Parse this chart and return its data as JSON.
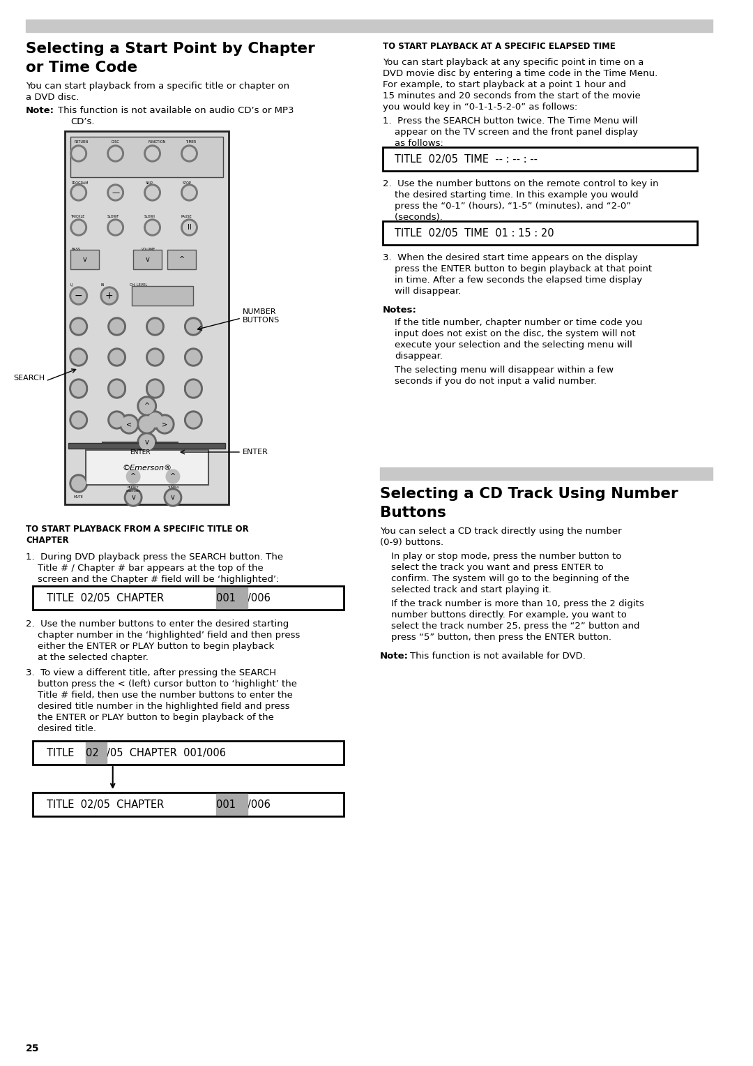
{
  "page_number": "25",
  "background_color": "#ffffff",
  "header_bar_color": "#c8c8c8",
  "section1_title_line1": "Selecting a Start Point by Chapter",
  "section1_title_line2": "or Time Code",
  "section1_body1": "You can start playback from a specific title or chapter on",
  "section1_body2": "a DVD disc.",
  "section1_note_bold": "Note:",
  "section1_note_text": "This function is not available on audio CD’s or MP3",
  "section1_note_text2": "CD’s.",
  "subsection_right_title": "TO START PLAYBACK AT A SPECIFIC ELAPSED TIME",
  "display_box1": "TITLE  02/05  TIME  -- : -- : --",
  "display_box2": "TITLE  02/05  TIME  01 : 15 : 20",
  "notes_label": "Notes:",
  "subsection_left_title1": "TO START PLAYBACK FROM A SPECIFIC TITLE OR",
  "subsection_left_title2": "CHAPTER",
  "display_chapter1_pre": "TITLE  02/05  CHAPTER  ",
  "display_chapter1_hl": "001",
  "display_chapter1_post": "/006",
  "section2_title_line1": "Selecting a CD Track Using Number",
  "section2_title_line2": "Buttons",
  "remote_label_number": "NUMBER\nBUTTONS",
  "remote_label_search": "SEARCH",
  "remote_label_enter": "ENTER",
  "header_bar_color2": "#aaaaaa"
}
